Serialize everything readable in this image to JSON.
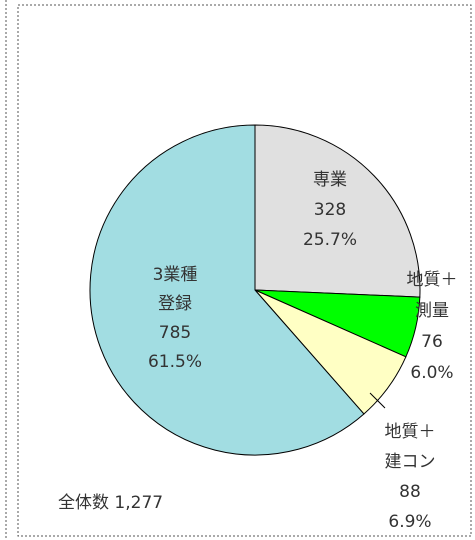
{
  "chart_data": {
    "type": "pie",
    "categories": [
      [
        "専業"
      ],
      [
        "地質＋",
        "測量"
      ],
      [
        "地質＋",
        "建コン"
      ],
      [
        "3業種",
        "登録"
      ]
    ],
    "values": [
      328,
      76,
      88,
      785
    ],
    "value_labels": [
      "25.7%",
      "6.0%",
      "6.9%",
      "61.5%"
    ],
    "colors": [
      "#e0e0e0",
      "#00ff00",
      "#ffffc4",
      "#a2dde2"
    ],
    "annotation": "全体数  1,277"
  }
}
